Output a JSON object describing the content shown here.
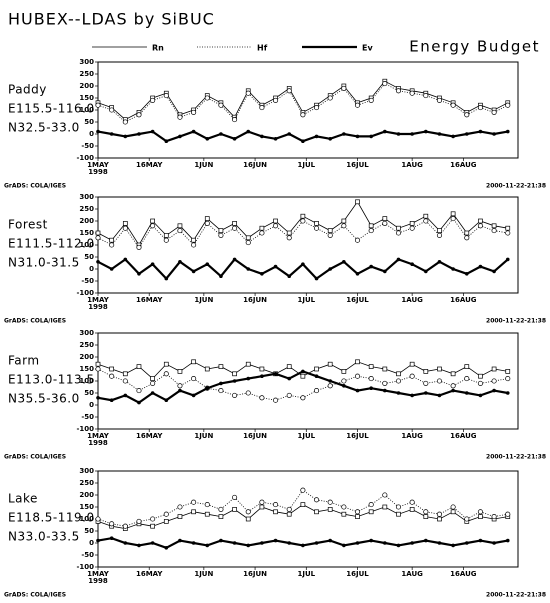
{
  "title": "HUBEX--LDAS by SiBUC",
  "subtitle": "Energy Budget",
  "legend": [
    {
      "name": "Rn",
      "color": "#000000",
      "marker": "square",
      "line": "solid"
    },
    {
      "name": "Hf",
      "color": "#000000",
      "marker": "circle",
      "line": "dotted"
    },
    {
      "name": "Ev",
      "color": "#000000",
      "marker": "dot",
      "line": "thick"
    }
  ],
  "chart_data": [
    {
      "type": "line",
      "label": [
        "Paddy",
        "E115.5-116.0",
        "N32.5-33.0"
      ],
      "source": "GrADS: COLA/IGES",
      "timestamp": "2000-11-22-21:38",
      "year": "1998",
      "x": [
        0,
        4,
        8,
        12,
        16,
        20,
        24,
        28,
        32,
        36,
        40,
        44,
        48,
        52,
        56,
        60,
        64,
        68,
        72,
        76,
        80,
        84,
        88,
        92,
        96,
        100,
        104,
        108,
        112,
        116,
        120
      ],
      "xlim": [
        0,
        123
      ],
      "xticks": [
        {
          "value": 0,
          "label": "1MAY"
        },
        {
          "value": 15,
          "label": "16MAY"
        },
        {
          "value": 31,
          "label": "1JUN"
        },
        {
          "value": 46,
          "label": "16JUN"
        },
        {
          "value": 61,
          "label": "1JUL"
        },
        {
          "value": 76,
          "label": "16JUL"
        },
        {
          "value": 92,
          "label": "1AUG"
        },
        {
          "value": 107,
          "label": "16AUG"
        }
      ],
      "ylim": [
        -100,
        300
      ],
      "yticks": [
        300,
        250,
        200,
        150,
        100,
        50,
        0,
        -50,
        -100
      ],
      "series": [
        {
          "values": [
            130,
            110,
            60,
            90,
            150,
            170,
            80,
            100,
            160,
            130,
            70,
            180,
            120,
            150,
            190,
            90,
            120,
            160,
            200,
            130,
            150,
            220,
            190,
            180,
            170,
            150,
            130,
            90,
            120,
            100,
            130
          ]
        },
        {
          "values": [
            120,
            100,
            50,
            80,
            140,
            160,
            70,
            90,
            150,
            120,
            60,
            170,
            110,
            140,
            180,
            80,
            110,
            150,
            190,
            120,
            140,
            210,
            180,
            170,
            160,
            140,
            120,
            80,
            110,
            90,
            120
          ]
        },
        {
          "values": [
            10,
            0,
            -10,
            0,
            10,
            -30,
            -10,
            10,
            -20,
            0,
            -20,
            10,
            -10,
            -20,
            0,
            -30,
            -10,
            -20,
            0,
            -10,
            -10,
            10,
            0,
            0,
            10,
            0,
            -10,
            0,
            10,
            0,
            10
          ]
        }
      ]
    },
    {
      "type": "line",
      "label": [
        "Forest",
        "E111.5-112.0",
        "N31.0-31.5"
      ],
      "source": "GrADS: COLA/IGES",
      "timestamp": "2000-11-22-21:38",
      "year": "1998",
      "x": [
        0,
        4,
        8,
        12,
        16,
        20,
        24,
        28,
        32,
        36,
        40,
        44,
        48,
        52,
        56,
        60,
        64,
        68,
        72,
        76,
        80,
        84,
        88,
        92,
        96,
        100,
        104,
        108,
        112,
        116,
        120
      ],
      "xlim": [
        0,
        123
      ],
      "xticks": [
        {
          "value": 0,
          "label": "1MAY"
        },
        {
          "value": 15,
          "label": "16MAY"
        },
        {
          "value": 31,
          "label": "1JUN"
        },
        {
          "value": 46,
          "label": "16JUN"
        },
        {
          "value": 61,
          "label": "1JUL"
        },
        {
          "value": 76,
          "label": "16JUL"
        },
        {
          "value": 92,
          "label": "1AUG"
        },
        {
          "value": 107,
          "label": "16AUG"
        }
      ],
      "ylim": [
        -100,
        300
      ],
      "yticks": [
        300,
        250,
        200,
        150,
        100,
        50,
        0,
        -50,
        -100
      ],
      "series": [
        {
          "values": [
            150,
            120,
            190,
            100,
            200,
            140,
            180,
            120,
            210,
            160,
            190,
            130,
            170,
            200,
            150,
            220,
            190,
            160,
            200,
            280,
            180,
            210,
            170,
            190,
            220,
            160,
            230,
            150,
            200,
            180,
            170
          ]
        },
        {
          "values": [
            130,
            100,
            170,
            90,
            180,
            120,
            160,
            100,
            190,
            140,
            170,
            110,
            150,
            180,
            130,
            200,
            170,
            140,
            180,
            120,
            160,
            190,
            150,
            170,
            200,
            140,
            210,
            130,
            180,
            160,
            150
          ]
        },
        {
          "values": [
            30,
            0,
            40,
            -20,
            20,
            -40,
            30,
            -10,
            20,
            -30,
            40,
            0,
            -20,
            10,
            -30,
            20,
            -40,
            0,
            30,
            -20,
            10,
            -10,
            40,
            20,
            -10,
            30,
            0,
            -20,
            10,
            -10,
            40
          ]
        }
      ]
    },
    {
      "type": "line",
      "label": [
        "Farm",
        "E113.0-113.5",
        "N35.5-36.0"
      ],
      "source": "GrADS: COLA/IGES",
      "timestamp": "2000-11-22-21:38",
      "year": "1998",
      "x": [
        0,
        4,
        8,
        12,
        16,
        20,
        24,
        28,
        32,
        36,
        40,
        44,
        48,
        52,
        56,
        60,
        64,
        68,
        72,
        76,
        80,
        84,
        88,
        92,
        96,
        100,
        104,
        108,
        112,
        116,
        120
      ],
      "xlim": [
        0,
        123
      ],
      "xticks": [
        {
          "value": 0,
          "label": "1MAY"
        },
        {
          "value": 15,
          "label": "16MAY"
        },
        {
          "value": 31,
          "label": "1JUN"
        },
        {
          "value": 46,
          "label": "16JUN"
        },
        {
          "value": 61,
          "label": "1JUL"
        },
        {
          "value": 76,
          "label": "16JUL"
        },
        {
          "value": 92,
          "label": "1AUG"
        },
        {
          "value": 107,
          "label": "16AUG"
        }
      ],
      "ylim": [
        -100,
        300
      ],
      "yticks": [
        300,
        250,
        200,
        150,
        100,
        50,
        0,
        -50,
        -100
      ],
      "series": [
        {
          "values": [
            170,
            150,
            130,
            160,
            110,
            170,
            140,
            180,
            150,
            160,
            130,
            170,
            150,
            130,
            160,
            120,
            150,
            170,
            140,
            180,
            160,
            150,
            130,
            170,
            140,
            150,
            130,
            160,
            120,
            150,
            140
          ]
        },
        {
          "values": [
            150,
            120,
            100,
            60,
            90,
            130,
            80,
            110,
            70,
            60,
            40,
            50,
            30,
            20,
            40,
            30,
            60,
            80,
            100,
            120,
            110,
            90,
            100,
            120,
            90,
            100,
            80,
            110,
            90,
            100,
            110
          ]
        },
        {
          "values": [
            30,
            20,
            40,
            10,
            50,
            20,
            60,
            40,
            70,
            90,
            100,
            110,
            120,
            130,
            110,
            140,
            120,
            100,
            80,
            60,
            70,
            60,
            50,
            40,
            50,
            40,
            60,
            50,
            40,
            60,
            50
          ]
        }
      ]
    },
    {
      "type": "line",
      "label": [
        "Lake",
        "E118.5-119.0",
        "N33.0-33.5"
      ],
      "source": "GrADS: COLA/IGES",
      "timestamp": "2000-11-22-21:38",
      "year": "1998",
      "x": [
        0,
        4,
        8,
        12,
        16,
        20,
        24,
        28,
        32,
        36,
        40,
        44,
        48,
        52,
        56,
        60,
        64,
        68,
        72,
        76,
        80,
        84,
        88,
        92,
        96,
        100,
        104,
        108,
        112,
        116,
        120
      ],
      "xlim": [
        0,
        123
      ],
      "xticks": [
        {
          "value": 0,
          "label": "1MAY"
        },
        {
          "value": 15,
          "label": "16MAY"
        },
        {
          "value": 31,
          "label": "1JUN"
        },
        {
          "value": 46,
          "label": "16JUN"
        },
        {
          "value": 61,
          "label": "1JUL"
        },
        {
          "value": 76,
          "label": "16JUL"
        },
        {
          "value": 92,
          "label": "1AUG"
        },
        {
          "value": 107,
          "label": "16AUG"
        }
      ],
      "ylim": [
        -100,
        300
      ],
      "yticks": [
        300,
        250,
        200,
        150,
        100,
        50,
        0,
        -50,
        -100
      ],
      "series": [
        {
          "values": [
            90,
            70,
            60,
            80,
            70,
            90,
            110,
            130,
            120,
            110,
            140,
            100,
            150,
            130,
            120,
            160,
            130,
            140,
            120,
            110,
            130,
            150,
            120,
            140,
            110,
            100,
            130,
            90,
            110,
            100,
            110
          ]
        },
        {
          "values": [
            100,
            80,
            70,
            90,
            100,
            120,
            150,
            170,
            160,
            140,
            190,
            130,
            170,
            160,
            140,
            220,
            180,
            170,
            150,
            130,
            160,
            200,
            150,
            170,
            130,
            120,
            150,
            100,
            130,
            110,
            120
          ]
        },
        {
          "values": [
            10,
            20,
            0,
            -10,
            0,
            -20,
            10,
            0,
            -10,
            10,
            0,
            -10,
            0,
            10,
            0,
            -10,
            0,
            10,
            -10,
            0,
            10,
            0,
            -10,
            0,
            10,
            0,
            -10,
            0,
            10,
            0,
            10
          ]
        }
      ]
    }
  ]
}
